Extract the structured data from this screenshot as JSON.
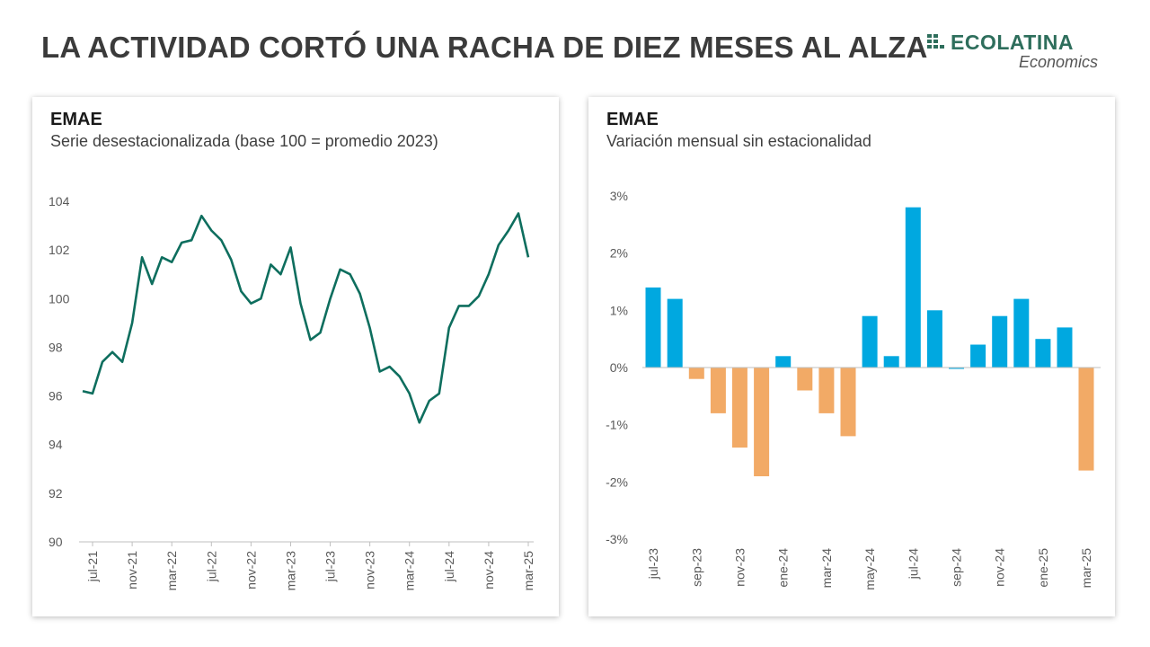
{
  "header": {
    "title": "LA ACTIVIDAD CORTÓ UNA RACHA DE DIEZ MESES AL ALZA"
  },
  "logo": {
    "name": "ECOLATINA",
    "sub": "Economics"
  },
  "colors": {
    "line": "#0e6e5e",
    "positive": "#00a8e0",
    "negative": "#f2aa66",
    "axis": "#bfbfbf",
    "brand": "#2e6e5c"
  },
  "chart_data": [
    {
      "type": "line",
      "title": "EMAE",
      "subtitle": "Serie desestacionalizada (base 100 = promedio 2023)",
      "ylim": [
        90,
        104
      ],
      "yticks": [
        "90",
        "92",
        "94",
        "96",
        "98",
        "100",
        "102",
        "104"
      ],
      "grid": false,
      "x": [
        "jun-21",
        "jul-21",
        "ago-21",
        "sep-21",
        "oct-21",
        "nov-21",
        "dic-21",
        "ene-22",
        "feb-22",
        "mar-22",
        "abr-22",
        "may-22",
        "jun-22",
        "jul-22",
        "ago-22",
        "sep-22",
        "oct-22",
        "nov-22",
        "dic-22",
        "ene-23",
        "feb-23",
        "mar-23",
        "abr-23",
        "may-23",
        "jun-23",
        "jul-23",
        "ago-23",
        "sep-23",
        "oct-23",
        "nov-23",
        "dic-23",
        "ene-24",
        "feb-24",
        "mar-24",
        "abr-24",
        "may-24",
        "jun-24",
        "jul-24",
        "ago-24",
        "sep-24",
        "oct-24",
        "nov-24",
        "dic-24",
        "ene-25",
        "feb-25",
        "mar-25"
      ],
      "xtick_labels": [
        "jul-21",
        "nov-21",
        "mar-22",
        "jul-22",
        "nov-22",
        "mar-23",
        "jul-23",
        "nov-23",
        "mar-24",
        "jul-24",
        "nov-24",
        "mar-25"
      ],
      "series": [
        {
          "values": [
            96.2,
            96.1,
            97.4,
            97.8,
            97.4,
            99.0,
            101.7,
            100.6,
            101.7,
            101.5,
            102.3,
            102.4,
            103.4,
            102.8,
            102.4,
            101.6,
            100.3,
            99.8,
            100.0,
            101.4,
            101.0,
            102.1,
            99.8,
            98.3,
            98.6,
            100.0,
            101.2,
            101.0,
            100.2,
            98.8,
            97.0,
            97.2,
            96.8,
            96.1,
            94.9,
            95.8,
            96.1,
            98.8,
            99.7,
            99.7,
            100.1,
            101.0,
            102.2,
            102.8,
            103.5,
            101.7
          ]
        }
      ]
    },
    {
      "type": "bar",
      "title": "EMAE",
      "subtitle": "Variación mensual sin estacionalidad",
      "ylim": [
        -3,
        3
      ],
      "yticks": [
        "-3%",
        "-2%",
        "-1%",
        "0%",
        "1%",
        "2%",
        "3%"
      ],
      "grid": false,
      "categories": [
        "jul-23",
        "ago-23",
        "sep-23",
        "oct-23",
        "nov-23",
        "dic-23",
        "ene-24",
        "feb-24",
        "mar-24",
        "abr-24",
        "may-24",
        "jun-24",
        "jul-24",
        "ago-24",
        "sep-24",
        "oct-24",
        "nov-24",
        "dic-24",
        "ene-25",
        "feb-25",
        "mar-25"
      ],
      "xtick_labels": [
        "jul-23",
        "sep-23",
        "nov-23",
        "ene-24",
        "mar-24",
        "may-24",
        "jul-24",
        "sep-24",
        "nov-24",
        "ene-25",
        "mar-25"
      ],
      "values": [
        1.4,
        1.2,
        -0.2,
        -0.8,
        -1.4,
        -1.9,
        0.2,
        -0.4,
        -0.8,
        -1.2,
        0.9,
        0.2,
        2.8,
        1.0,
        0.0,
        0.4,
        0.9,
        1.2,
        0.5,
        0.7,
        -1.8
      ]
    }
  ]
}
